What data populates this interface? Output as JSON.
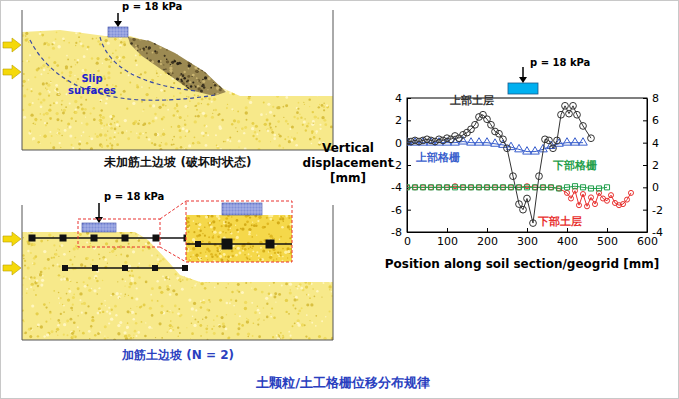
{
  "chart_data": {
    "type": "line",
    "x_label": "Position along soil section/geogrid [mm]",
    "y_label": "Vertical displacement [mm]",
    "annotations": [
      "p = 18 kPa"
    ],
    "xlim": [
      0,
      600
    ],
    "xticks": [
      0,
      100,
      200,
      300,
      400,
      500,
      600
    ],
    "ylim": [
      -8,
      4
    ],
    "yticks": [
      -8,
      -6,
      -4,
      -2,
      0,
      2,
      4
    ],
    "y2lim": [
      -4,
      8
    ],
    "y2ticks": [
      -4,
      -2,
      0,
      2,
      4,
      6,
      8
    ],
    "series": [
      {
        "name": "上部土层",
        "color": "#333333",
        "marker": "circle",
        "line_style": "solid",
        "x": [
          0,
          10,
          20,
          30,
          40,
          50,
          60,
          70,
          80,
          90,
          100,
          110,
          120,
          130,
          140,
          150,
          160,
          170,
          180,
          190,
          200,
          210,
          220,
          230,
          240,
          250,
          265,
          280,
          290,
          300,
          315,
          330,
          345,
          355,
          365,
          375,
          385,
          395,
          405,
          415,
          425,
          440,
          460
        ],
        "values": [
          0.1,
          0.1,
          0.2,
          0.1,
          0.2,
          0.3,
          0.2,
          0.1,
          0.3,
          0.2,
          0.4,
          0.3,
          0.6,
          0.4,
          0.7,
          0.9,
          1.2,
          1.6,
          2.3,
          2.5,
          2.1,
          1.6,
          1.0,
          0.8,
          0.3,
          -0.5,
          -3.0,
          -5.5,
          -6.0,
          -5.0,
          -7.2,
          -3.0,
          0.3,
          0.2,
          -0.5,
          0.2,
          2.5,
          3.3,
          2.6,
          3.3,
          2.5,
          1.5,
          0.4
        ]
      },
      {
        "name": "上部格栅",
        "color": "#3a5fcd",
        "marker": "triangle",
        "line_style": "solid",
        "x": [
          0,
          20,
          40,
          60,
          80,
          100,
          120,
          140,
          160,
          180,
          200,
          220,
          240,
          260,
          280,
          300,
          320,
          340,
          360,
          380,
          400,
          420,
          440
        ],
        "values": [
          0,
          0,
          0,
          0,
          0,
          0,
          0,
          0.1,
          0,
          0,
          0,
          -0.1,
          -0.2,
          -0.4,
          -0.6,
          -0.8,
          -0.8,
          -0.6,
          -0.3,
          -0.1,
          0,
          0,
          0
        ]
      },
      {
        "name": "下部格栅",
        "color": "#1f9e4a",
        "marker": "square",
        "line_style": "solid",
        "axis": "y2",
        "x": [
          0,
          20,
          40,
          60,
          80,
          100,
          120,
          140,
          160,
          180,
          200,
          220,
          240,
          260,
          280,
          300,
          320,
          340,
          360,
          380,
          400,
          420,
          440,
          460,
          480,
          500
        ],
        "values": [
          0,
          0,
          0,
          0,
          0,
          0,
          0,
          0,
          0,
          0,
          0,
          0,
          0,
          0,
          0,
          0,
          0,
          0,
          0,
          -0.1,
          0,
          0.1,
          0,
          -0.1,
          -0.1,
          0
        ]
      },
      {
        "name": "下部土层",
        "color": "#e8312f",
        "marker": "circle",
        "line_style": "solid",
        "axis": "y2",
        "x": [
          0,
          20,
          40,
          60,
          80,
          100,
          120,
          140,
          160,
          180,
          200,
          220,
          240,
          260,
          280,
          300,
          320,
          340,
          360,
          380,
          400,
          410,
          420,
          430,
          440,
          450,
          460,
          470,
          480,
          490,
          500,
          510,
          520,
          530,
          540,
          550,
          560
        ],
        "values": [
          0,
          0,
          0,
          0,
          0,
          0,
          0.1,
          0,
          0,
          0,
          0,
          0,
          0,
          0,
          0,
          0.1,
          0,
          0,
          0,
          -0.1,
          -0.5,
          -1.0,
          -0.3,
          -1.6,
          -0.6,
          -1.7,
          -0.9,
          -1.5,
          -0.5,
          -1.0,
          -1.2,
          -0.7,
          -1.4,
          -1.6,
          -1.5,
          -1.1,
          -0.5
        ]
      }
    ]
  },
  "diagram": {
    "top_panel": {
      "load": "p = 18 kPa",
      "slip_label": "Slip surfaces",
      "caption": "未加筋土边坡 (破坏时状态)"
    },
    "bottom_panel": {
      "load": "p = 18 kPa",
      "caption": "加筋土边坡 (N = 2)"
    },
    "footer": "土颗粒/土工格栅位移分布规律"
  }
}
